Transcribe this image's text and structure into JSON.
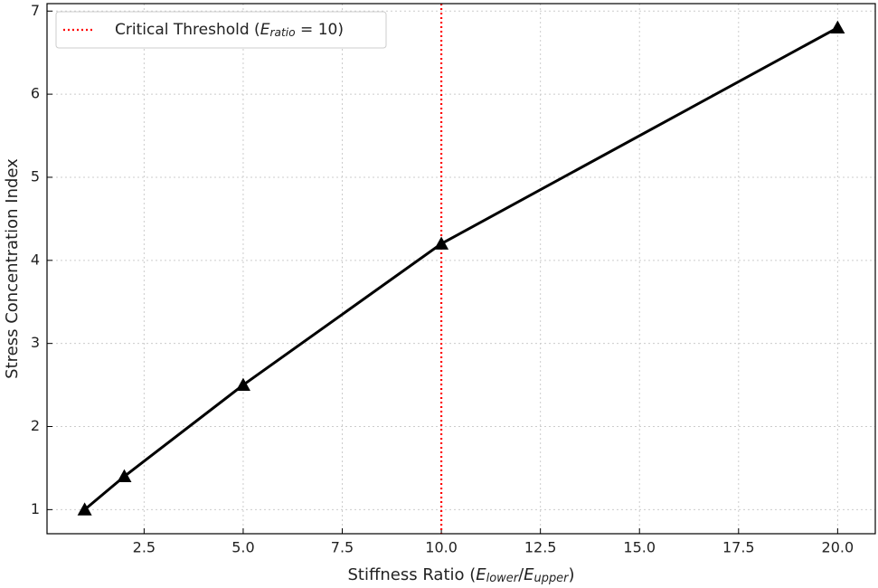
{
  "chart_data": {
    "type": "line",
    "xlabel": [
      {
        "text": "Stiffness Ratio ("
      },
      {
        "text": "E"
      },
      {
        "text": "lower",
        "sub": true
      },
      {
        "text": "/"
      },
      {
        "text": "E"
      },
      {
        "text": "upper",
        "sub": true
      },
      {
        "text": ")"
      }
    ],
    "ylabel": "Stress Concentration Index",
    "x": [
      1,
      2,
      5,
      10,
      20
    ],
    "series": [
      {
        "name": "Stress Concentration Index",
        "color": "#000000",
        "marker": "triangle",
        "values": [
          1.0,
          1.4,
          2.5,
          4.2,
          6.8
        ]
      }
    ],
    "threshold": {
      "x": 10,
      "color": "#ff0000",
      "label": [
        {
          "text": "Critical Threshold ("
        },
        {
          "text": "E"
        },
        {
          "text": "ratio",
          "sub": true
        },
        {
          "text": " = 10)"
        }
      ]
    },
    "xlim": [
      0.05,
      20.95
    ],
    "ylim": [
      0.71,
      7.09
    ],
    "xticks": [
      {
        "value": 2.5,
        "label": "2.5"
      },
      {
        "value": 5,
        "label": "5.0"
      },
      {
        "value": 7.5,
        "label": "7.5"
      },
      {
        "value": 10,
        "label": "10.0"
      },
      {
        "value": 12.5,
        "label": "12.5"
      },
      {
        "value": 15,
        "label": "15.0"
      },
      {
        "value": 17.5,
        "label": "17.5"
      },
      {
        "value": 20,
        "label": "20.0"
      }
    ],
    "yticks": [
      1,
      2,
      3,
      4,
      5,
      6,
      7
    ],
    "grid": true,
    "legend": "upper left"
  }
}
